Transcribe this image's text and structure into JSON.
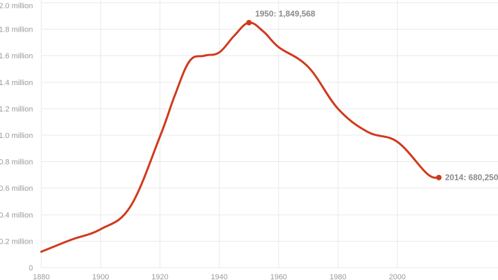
{
  "chart_data": {
    "type": "line",
    "title": "",
    "xlabel": "",
    "ylabel": "",
    "xlim": [
      1880,
      2014
    ],
    "ylim": [
      0,
      2000000
    ],
    "grid": true,
    "legend": "none",
    "x_ticks": [
      1880,
      1900,
      1920,
      1940,
      1960,
      1980,
      2000
    ],
    "y_ticks": [
      {
        "value": 0,
        "label": "0"
      },
      {
        "value": 200000,
        "label": "0.2 million"
      },
      {
        "value": 400000,
        "label": "0.4 million"
      },
      {
        "value": 600000,
        "label": "0.6 million"
      },
      {
        "value": 800000,
        "label": "0.8 million"
      },
      {
        "value": 1000000,
        "label": "1.0 million"
      },
      {
        "value": 1200000,
        "label": "1.2 million"
      },
      {
        "value": 1400000,
        "label": "1.4 million"
      },
      {
        "value": 1600000,
        "label": "1.6 million"
      },
      {
        "value": 1800000,
        "label": "1.8 million"
      },
      {
        "value": 2000000,
        "label": "2.0 million"
      }
    ],
    "series": [
      {
        "color": "#d0391c",
        "x": [
          1880,
          1890,
          1900,
          1910,
          1920,
          1925,
          1930,
          1935,
          1940,
          1945,
          1950,
          1955,
          1960,
          1970,
          1980,
          1990,
          2000,
          2010,
          2014
        ],
        "values": [
          120000,
          210000,
          290000,
          460000,
          990000,
          1300000,
          1560000,
          1600000,
          1625000,
          1750000,
          1849568,
          1780000,
          1665000,
          1515000,
          1200000,
          1025000,
          950000,
          710000,
          680250
        ]
      }
    ],
    "annotations": [
      {
        "x": 1950,
        "y": 1849568,
        "label": "1950: 1,849,568",
        "position": "above-right"
      },
      {
        "x": 2014,
        "y": 680250,
        "label": "2014: 680,250",
        "position": "right"
      }
    ]
  }
}
